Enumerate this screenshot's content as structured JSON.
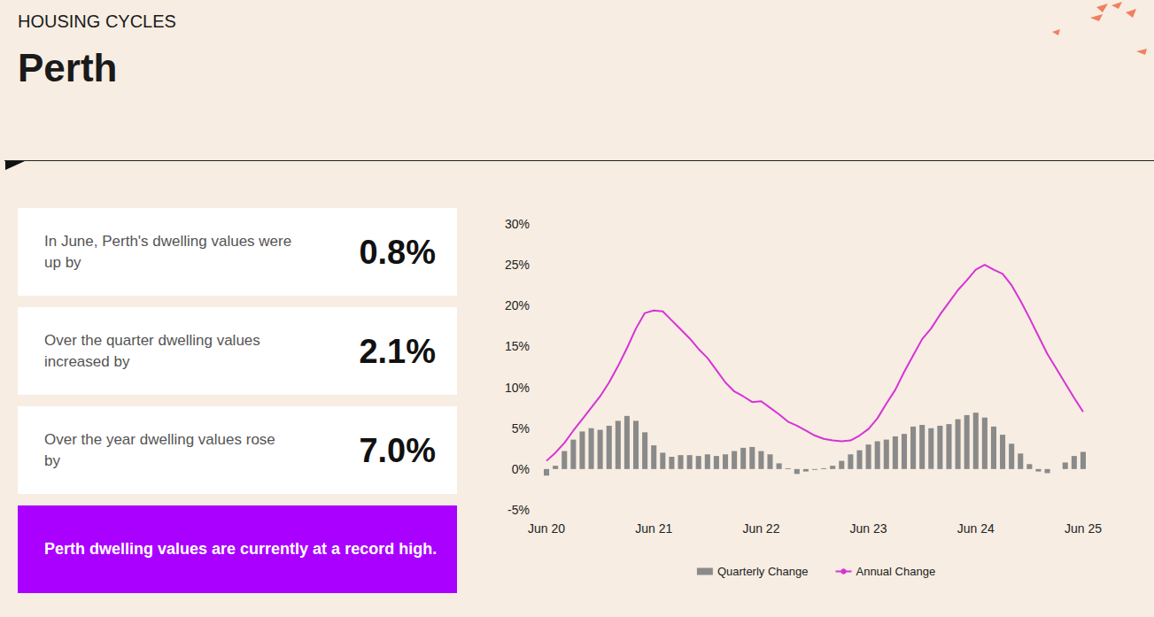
{
  "header": {
    "section": "HOUSING CYCLES",
    "title": "Perth"
  },
  "cards": [
    {
      "text": "In June, Perth's dwelling values were up by",
      "value": "0.8%"
    },
    {
      "text": "Over the quarter dwelling values increased by",
      "value": "2.1%"
    },
    {
      "text": "Over the year dwelling values rose by",
      "value": "7.0%"
    }
  ],
  "note": "Perth dwelling values are currently at a record high.",
  "chart_data": {
    "type": "bar",
    "categories": [
      "Jun 20",
      null,
      null,
      null,
      null,
      null,
      null,
      null,
      null,
      null,
      null,
      null,
      "Jun 21",
      null,
      null,
      null,
      null,
      null,
      null,
      null,
      null,
      null,
      null,
      null,
      "Jun 22",
      null,
      null,
      null,
      null,
      null,
      null,
      null,
      null,
      null,
      null,
      null,
      "Jun 23",
      null,
      null,
      null,
      null,
      null,
      null,
      null,
      null,
      null,
      null,
      null,
      "Jun 24",
      null,
      null,
      null,
      null,
      null,
      null,
      null,
      null,
      null,
      null,
      null,
      "Jun 25"
    ],
    "series": [
      {
        "name": "Quarterly Change",
        "type": "bar",
        "color": "#8a8a8a",
        "values": [
          -0.8,
          0.4,
          2.2,
          3.6,
          4.6,
          5.0,
          4.8,
          5.3,
          5.9,
          6.5,
          5.9,
          4.5,
          2.9,
          2.0,
          1.5,
          1.7,
          1.7,
          1.6,
          1.8,
          1.6,
          1.8,
          2.2,
          2.6,
          2.7,
          2.2,
          1.8,
          0.7,
          0.1,
          -0.6,
          -0.3,
          -0.1,
          0.1,
          0.4,
          1.0,
          1.8,
          2.3,
          3.0,
          3.4,
          3.6,
          4.0,
          4.3,
          5.2,
          5.4,
          5.0,
          5.3,
          5.5,
          6.1,
          6.6,
          6.9,
          6.3,
          5.2,
          4.2,
          3.1,
          1.9,
          0.6,
          -0.3,
          -0.5,
          0.0,
          0.8,
          1.6,
          2.1
        ]
      },
      {
        "name": "Annual Change",
        "type": "line",
        "color": "#d633d6",
        "marker": "none",
        "line_style": "solid",
        "values": [
          1.0,
          2.0,
          3.2,
          4.7,
          6.1,
          7.5,
          8.9,
          10.6,
          12.6,
          14.8,
          17.2,
          19.1,
          19.4,
          19.3,
          18.2,
          17.1,
          16.0,
          14.7,
          13.6,
          12.1,
          10.6,
          9.5,
          8.9,
          8.2,
          8.3,
          7.5,
          6.7,
          5.8,
          5.3,
          4.7,
          4.1,
          3.7,
          3.5,
          3.4,
          3.5,
          4.1,
          4.9,
          6.2,
          8.0,
          9.7,
          11.9,
          13.9,
          15.9,
          17.2,
          18.9,
          20.4,
          21.9,
          23.1,
          24.4,
          25.0,
          24.4,
          23.9,
          22.5,
          20.6,
          18.5,
          16.3,
          14.1,
          12.3,
          10.5,
          8.7,
          7.0
        ]
      }
    ],
    "ylim": [
      -5,
      30
    ],
    "yticks": [
      {
        "value": -5,
        "label": "-5%"
      },
      {
        "value": 0,
        "label": "0%"
      },
      {
        "value": 5,
        "label": "5%"
      },
      {
        "value": 10,
        "label": "10%"
      },
      {
        "value": 15,
        "label": "15%"
      },
      {
        "value": 20,
        "label": "20%"
      },
      {
        "value": 25,
        "label": "25%"
      },
      {
        "value": 30,
        "label": "30%"
      }
    ],
    "grid": false,
    "legend": "bottom"
  }
}
